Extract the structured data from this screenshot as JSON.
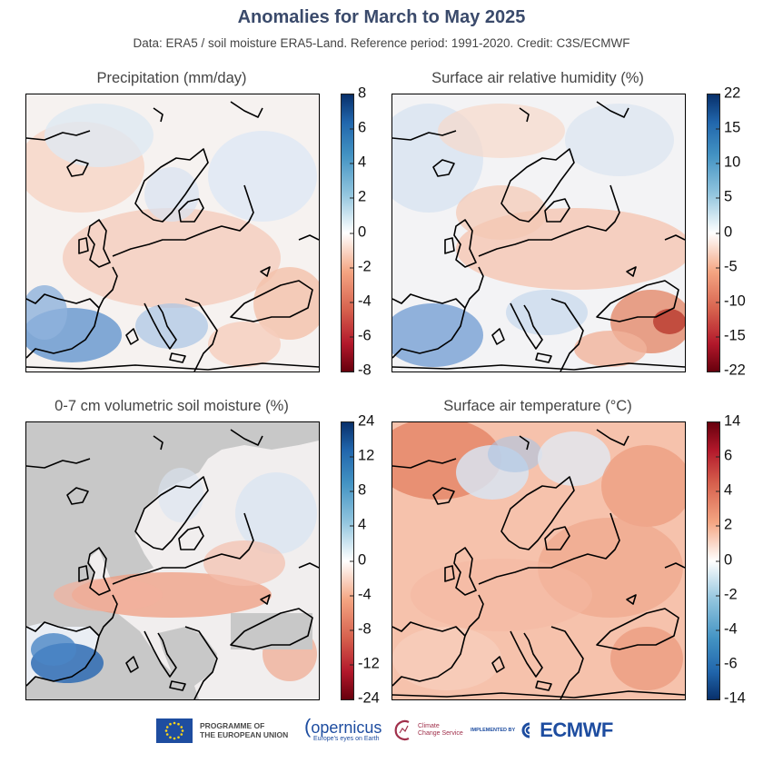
{
  "header": {
    "title": "Anomalies for March to May 2025",
    "subtitle": "Data: ERA5 / soil moisture ERA5-Land.  Reference period: 1991-2020.  Credit: C3S/ECMWF"
  },
  "panels": [
    {
      "title": "Precipitation (mm/day)",
      "colorbar": {
        "ticks": [
          "8",
          "6",
          "4",
          "2",
          "0",
          "-2",
          "-4",
          "-6",
          "-8"
        ],
        "scheme": "diverging-blue-top"
      }
    },
    {
      "title": "Surface air relative humidity (%)",
      "colorbar": {
        "ticks": [
          "22",
          "15",
          "10",
          "5",
          "0",
          "-5",
          "-10",
          "-15",
          "-22"
        ],
        "scheme": "diverging-blue-top"
      }
    },
    {
      "title": "0-7 cm volumetric soil moisture (%)",
      "colorbar": {
        "ticks": [
          "24",
          "12",
          "8",
          "4",
          "0",
          "-4",
          "-8",
          "-12",
          "-24"
        ],
        "scheme": "diverging-blue-top"
      }
    },
    {
      "title": "Surface air temperature (°C)",
      "colorbar": {
        "ticks": [
          "14",
          "6",
          "4",
          "2",
          "0",
          "-2",
          "-4",
          "-6",
          "-14"
        ],
        "scheme": "diverging-red-top"
      }
    }
  ],
  "footer": {
    "eu_line1": "PROGRAMME OF",
    "eu_line2": "THE EUROPEAN UNION",
    "copernicus": "opernicus",
    "copernicus_tagline": "Europe's eyes on Earth",
    "c3s_line1": "Climate",
    "c3s_line2": "Change Service",
    "implemented_by": "IMPLEMENTED BY",
    "ecmwf": "ECMWF"
  },
  "colors": {
    "title": "#3a4a6b",
    "blue_strong": "#08306b",
    "red_strong": "#67000d",
    "neutral": "#ffffff",
    "mask_grey": "#c8c8c8",
    "brand_blue": "#1e4da0",
    "c3s_red": "#a0304b"
  }
}
